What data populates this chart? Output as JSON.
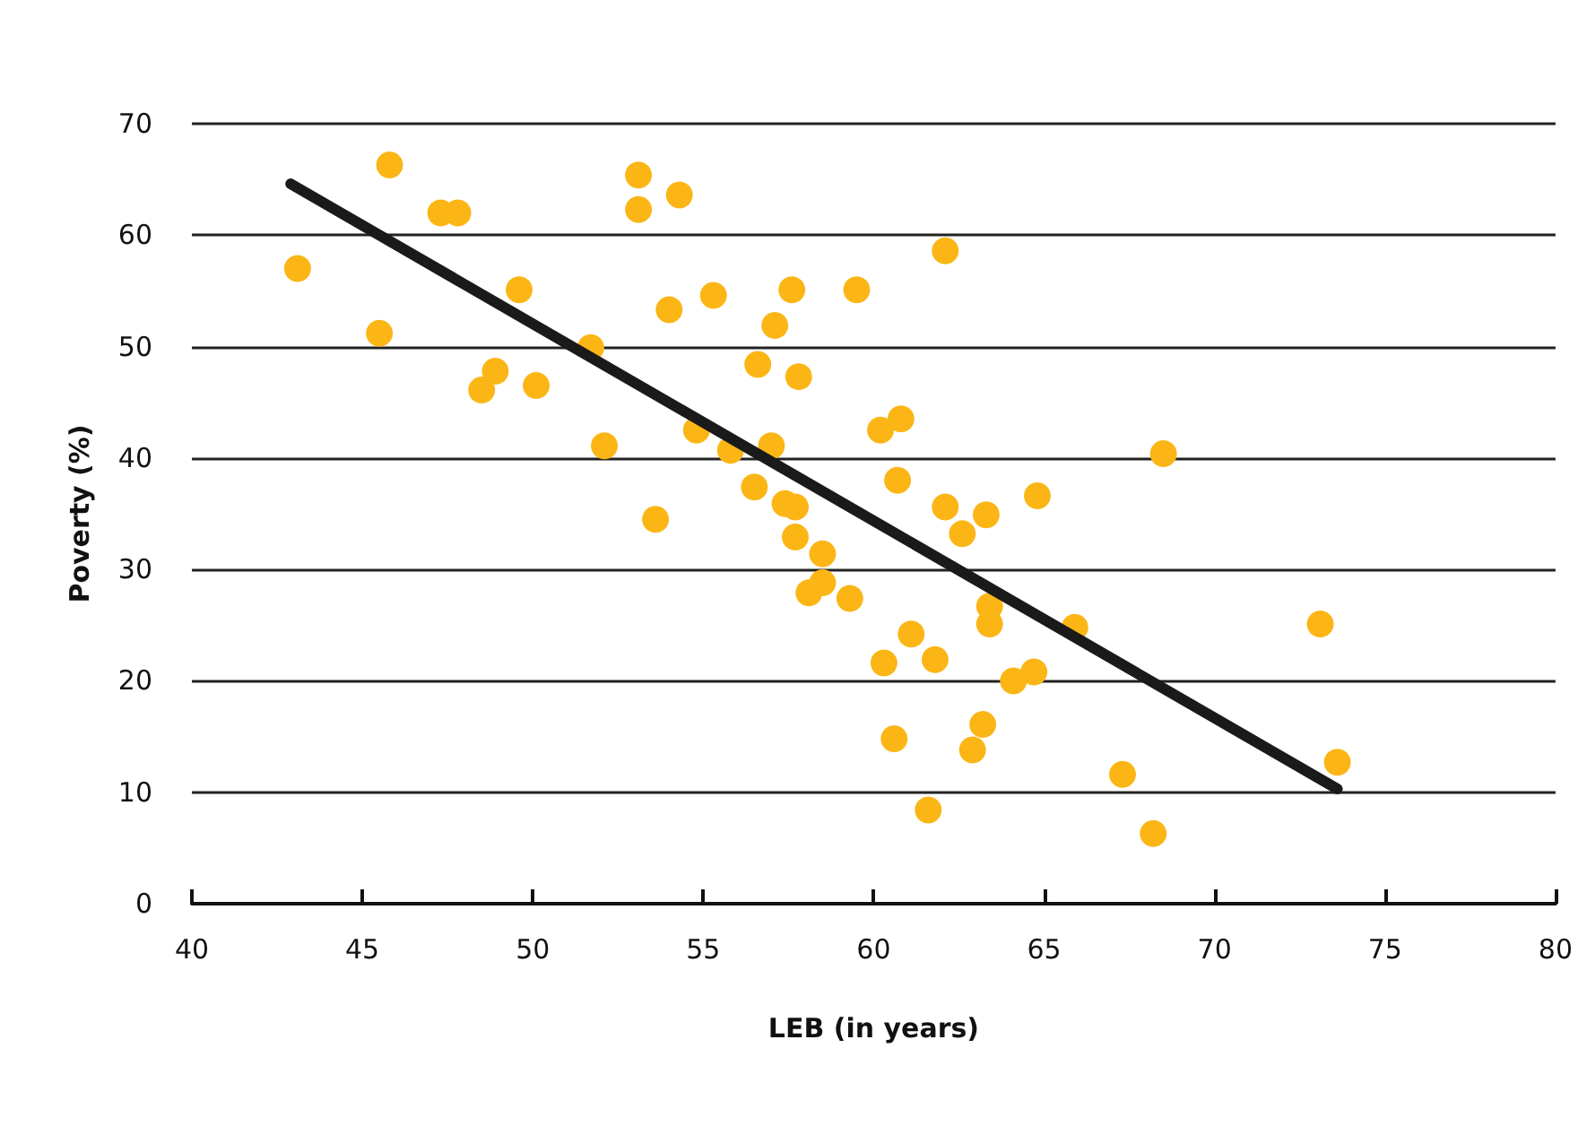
{
  "chart_data": {
    "type": "scatter",
    "xlabel": "LEB (in years)",
    "ylabel": "Poverty (%)",
    "xlim": [
      40,
      80
    ],
    "xticks": [
      40,
      45,
      50,
      55,
      60,
      65,
      70,
      75,
      80
    ],
    "ylim": [
      0,
      70
    ],
    "yticks": [
      0,
      10,
      20,
      30,
      40,
      50,
      60,
      70
    ],
    "grid": "y",
    "marker": "circle",
    "series": [
      {
        "type": "scatter",
        "color": "#fbb616",
        "x": [
          43.1,
          45.8,
          45.5,
          47.3,
          47.8,
          49.6,
          48.9,
          48.5,
          50.1,
          51.7,
          52.1,
          53.1,
          53.1,
          54.3,
          54.0,
          53.6,
          54.8,
          55.3,
          55.8,
          56.6,
          57.1,
          57.6,
          57.8,
          57.0,
          56.5,
          57.4,
          57.7,
          57.7,
          58.5,
          58.1,
          58.5,
          59.3,
          59.5,
          60.2,
          60.8,
          60.7,
          62.1,
          62.1,
          62.6,
          63.3,
          64.8,
          63.4,
          63.4,
          65.9,
          61.1,
          60.3,
          61.8,
          60.6,
          61.6,
          63.2,
          62.9,
          64.1,
          64.7,
          67.3,
          68.2,
          68.5,
          73.1,
          73.6
        ],
        "values": [
          57.0,
          66.3,
          51.2,
          62.0,
          62.0,
          55.1,
          47.8,
          46.1,
          46.5,
          49.9,
          41.1,
          65.4,
          62.3,
          63.6,
          53.3,
          34.5,
          42.5,
          54.6,
          40.7,
          48.4,
          51.9,
          55.1,
          47.3,
          41.1,
          37.4,
          35.9,
          35.6,
          32.9,
          31.4,
          27.9,
          28.8,
          27.4,
          55.1,
          42.5,
          43.5,
          38.0,
          58.6,
          35.6,
          33.2,
          34.9,
          36.6,
          26.7,
          25.1,
          24.8,
          24.2,
          21.6,
          21.9,
          14.8,
          8.4,
          16.1,
          13.8,
          20.0,
          20.8,
          11.6,
          6.3,
          40.4,
          25.1,
          12.7
        ]
      },
      {
        "type": "line",
        "color": "#1a1a1a",
        "marker": "none",
        "line_style": "solid",
        "x": [
          42.9,
          73.6
        ],
        "values": [
          64.6,
          10.3
        ]
      }
    ]
  }
}
